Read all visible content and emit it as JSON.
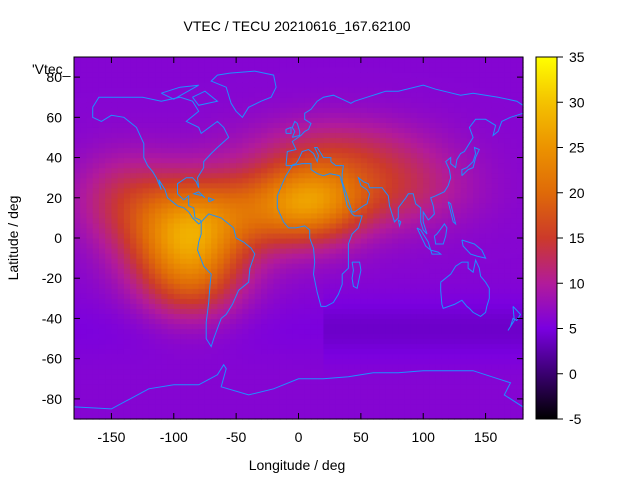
{
  "chart_data": {
    "type": "heatmap",
    "title": "VTEC / TECU 20210616_167.62100",
    "xlabel": "Longitude / deg",
    "ylabel": "Latitude / deg",
    "legend_label": "'Vtec_",
    "xlim": [
      -180,
      180
    ],
    "ylim": [
      -90,
      90
    ],
    "xticks": [
      -150,
      -100,
      -50,
      0,
      50,
      100,
      150
    ],
    "yticks": [
      -80,
      -60,
      -40,
      -20,
      0,
      20,
      40,
      60,
      80
    ],
    "xtick_labels": [
      "-150",
      "-100",
      "-50",
      "0",
      "50",
      "100",
      "150"
    ],
    "ytick_labels": [
      "-80",
      "-60",
      "-40",
      "-20",
      "0",
      "20",
      "40",
      "60",
      "80"
    ],
    "colorbar": {
      "min": -5,
      "max": 35,
      "ticks": [
        35,
        30,
        25,
        20,
        15,
        10,
        5,
        0,
        -5
      ],
      "tick_labels": [
        "35",
        "30",
        "25",
        "20",
        "15",
        "10",
        "5",
        "0",
        "-5"
      ],
      "stops": [
        {
          "value": -5,
          "color": "#000000"
        },
        {
          "value": 0,
          "color": "#3a0070"
        },
        {
          "value": 5,
          "color": "#7a00e0"
        },
        {
          "value": 10,
          "color": "#b21b9a"
        },
        {
          "value": 15,
          "color": "#cc3a2a"
        },
        {
          "value": 20,
          "color": "#df6a08"
        },
        {
          "value": 25,
          "color": "#ec9300"
        },
        {
          "value": 30,
          "color": "#f4c200"
        },
        {
          "value": 35,
          "color": "#ffff00"
        }
      ]
    },
    "grid_resolution_deg": [
      5,
      2.5
    ],
    "tec_blobs": [
      {
        "lon": -90,
        "lat": 0,
        "peak": 18,
        "sigma_lon": 32,
        "sigma_lat": 18
      },
      {
        "lon": -85,
        "lat": -25,
        "peak": 6,
        "sigma_lon": 28,
        "sigma_lat": 14
      },
      {
        "lon": 10,
        "lat": 18,
        "peak": 14,
        "sigma_lon": 30,
        "sigma_lat": 14
      },
      {
        "lon": -40,
        "lat": 15,
        "peak": 8,
        "sigma_lon": 40,
        "sigma_lat": 15
      },
      {
        "lon": 70,
        "lat": 25,
        "peak": 7,
        "sigma_lon": 45,
        "sigma_lat": 14
      },
      {
        "lon": -140,
        "lat": 20,
        "peak": 6,
        "sigma_lon": 30,
        "sigma_lat": 16
      },
      {
        "lon": 30,
        "lat": 45,
        "peak": 5,
        "sigma_lon": 50,
        "sigma_lat": 12
      }
    ],
    "tec_background": 6
  },
  "colors": {
    "coastline": "#1e90ff",
    "frame": "#000000"
  }
}
